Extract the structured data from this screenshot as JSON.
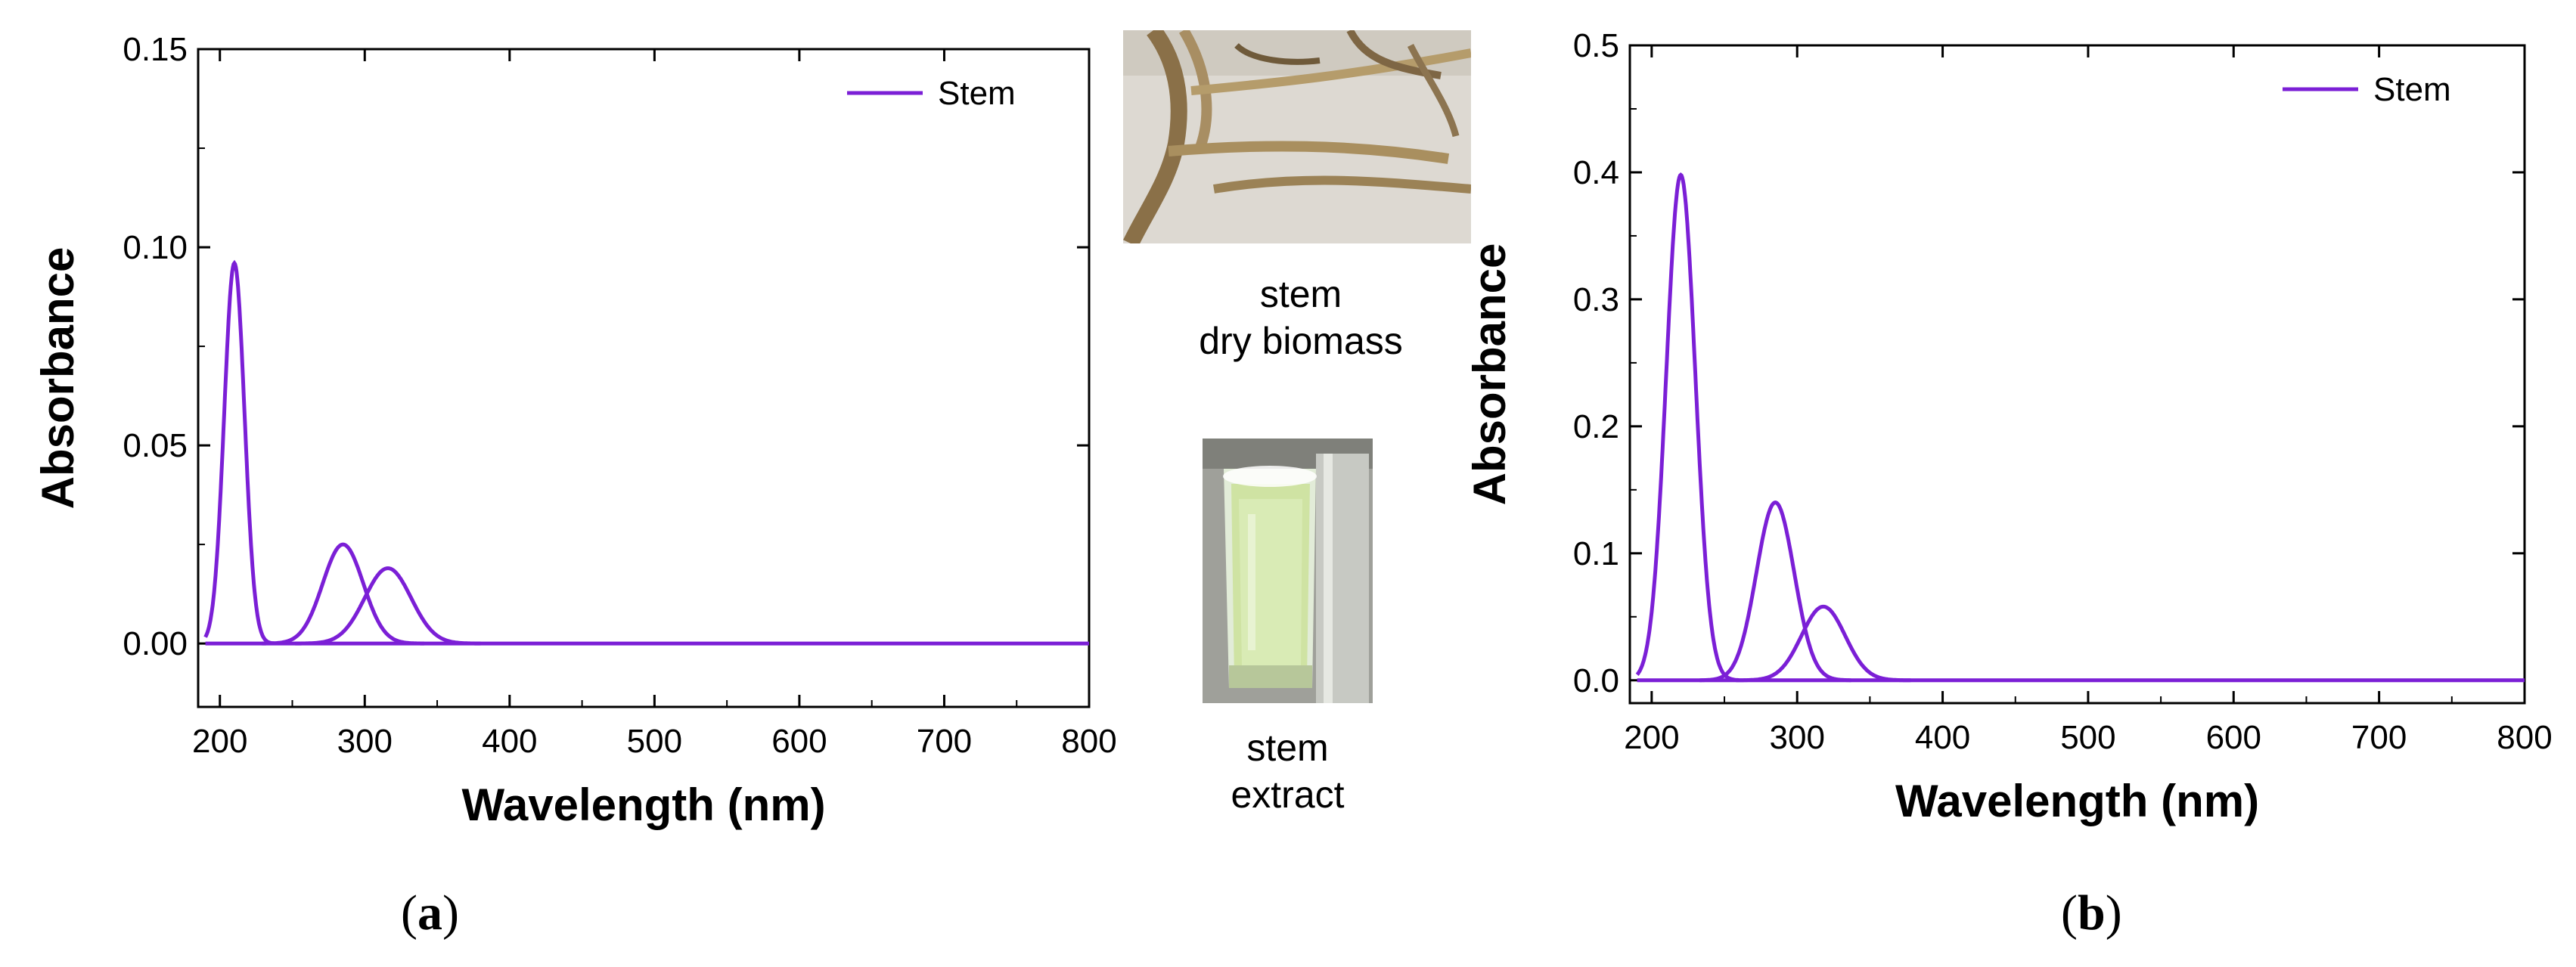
{
  "chart_data": [
    {
      "type": "line",
      "panel_label": "a",
      "xlabel": "Wavelength (nm)",
      "ylabel": "Absorbance",
      "xlim": [
        185,
        800
      ],
      "ylim": [
        -0.016,
        0.15
      ],
      "xticks": [
        200,
        300,
        400,
        500,
        600,
        700,
        800
      ],
      "xtick_labels": [
        "200",
        "300",
        "400",
        "500",
        "600",
        "700",
        "800"
      ],
      "yticks": [
        0.0,
        0.05,
        0.1,
        0.15
      ],
      "ytick_labels": [
        "0.00",
        "0.05",
        "0.10",
        "0.15"
      ],
      "legend": "Stem",
      "legend_position": "top-right",
      "series_color": "#7B1FD6",
      "series": [
        {
          "name": "Stem",
          "peaks": [
            {
              "center": 210,
              "height": 0.096,
              "sigma": 7
            },
            {
              "center": 285,
              "height": 0.025,
              "sigma": 14
            },
            {
              "center": 316,
              "height": 0.019,
              "sigma": 16
            }
          ]
        }
      ]
    },
    {
      "type": "line",
      "panel_label": "b",
      "xlabel": "Wavelength (nm)",
      "ylabel": "Absorbance",
      "xlim": [
        185,
        800
      ],
      "ylim": [
        -0.018,
        0.5
      ],
      "xticks": [
        200,
        300,
        400,
        500,
        600,
        700,
        800
      ],
      "xtick_labels": [
        "200",
        "300",
        "400",
        "500",
        "600",
        "700",
        "800"
      ],
      "yticks": [
        0.0,
        0.1,
        0.2,
        0.3,
        0.4,
        0.5
      ],
      "ytick_labels": [
        "0.0",
        "0.1",
        "0.2",
        "0.3",
        "0.4",
        "0.5"
      ],
      "legend": "Stem",
      "legend_position": "top-right",
      "series_color": "#7B1FD6",
      "series": [
        {
          "name": "Stem",
          "peaks": [
            {
              "center": 220,
              "height": 0.398,
              "sigma": 10
            },
            {
              "center": 285,
              "height": 0.14,
              "sigma": 13
            },
            {
              "center": 318,
              "height": 0.058,
              "sigma": 15
            }
          ]
        }
      ]
    }
  ],
  "photos": {
    "biomass_caption_line1": "stem",
    "biomass_caption_line2": "dry biomass",
    "extract_caption_line1": "stem",
    "extract_caption_line2": "extract"
  },
  "labels": {
    "a_prefix": "(",
    "a": "a",
    "a_suffix": ")",
    "b_prefix": "(",
    "b": "b",
    "b_suffix": ")"
  }
}
